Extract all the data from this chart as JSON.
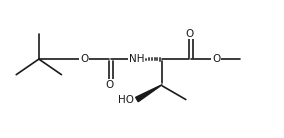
{
  "bg_color": "#ffffff",
  "line_color": "#1a1a1a",
  "lw": 1.2,
  "fig_width": 2.84,
  "fig_height": 1.38,
  "dpi": 100,
  "xlim": [
    0,
    10.0
  ],
  "ylim": [
    0,
    4.0
  ],
  "font_size_atom": 7.5,
  "font_size_small": 6.5
}
